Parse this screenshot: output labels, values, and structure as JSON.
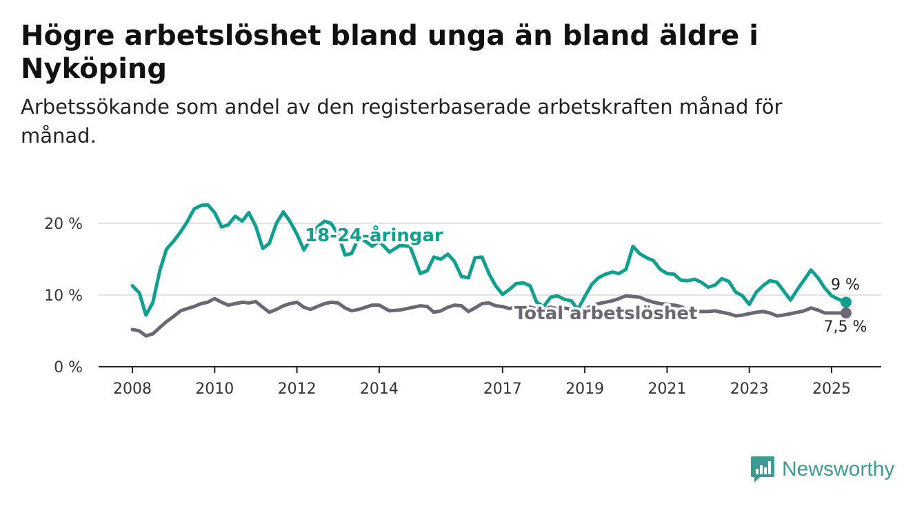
{
  "title": "Högre arbetslöshet bland unga än bland äldre i Nyköping",
  "subtitle": "Arbetssökande som andel av den registerbaserade arbetskraften månad för månad.",
  "brand": "Newsworthy",
  "colors": {
    "youth": "#11a08f",
    "total": "#6b6873",
    "grid": "#d9d9d9",
    "axis": "#222222"
  },
  "chart_data": {
    "type": "line",
    "xlim": [
      2008,
      2026.2
    ],
    "ylim": [
      0,
      25
    ],
    "x_ticks": [
      2008,
      2010,
      2012,
      2014,
      2017,
      2019,
      2021,
      2023,
      2025
    ],
    "x_tick_labels": [
      "2008",
      "2010",
      "2012",
      "2014",
      "2017",
      "2019",
      "2021",
      "2023",
      "2025"
    ],
    "y_ticks": [
      0,
      10,
      20
    ],
    "y_tick_labels": [
      "0 %",
      "10 %",
      "20 %"
    ],
    "grid": "horizontal",
    "series": [
      {
        "name": "18-24-åringar",
        "color": "#11a08f",
        "end_label": "9 %",
        "x": [
          2008.0,
          2008.17,
          2008.33,
          2008.5,
          2008.67,
          2008.83,
          2009.0,
          2009.17,
          2009.33,
          2009.5,
          2009.67,
          2009.83,
          2010.0,
          2010.17,
          2010.33,
          2010.5,
          2010.67,
          2010.83,
          2011.0,
          2011.17,
          2011.33,
          2011.5,
          2011.67,
          2011.83,
          2012.0,
          2012.17,
          2012.33,
          2012.5,
          2012.67,
          2012.83,
          2013.0,
          2013.17,
          2013.33,
          2013.5,
          2013.67,
          2013.83,
          2014.0,
          2014.25,
          2014.5,
          2014.75,
          2015.0,
          2015.17,
          2015.33,
          2015.5,
          2015.67,
          2015.83,
          2016.0,
          2016.17,
          2016.33,
          2016.5,
          2016.67,
          2016.83,
          2017.0,
          2017.17,
          2017.33,
          2017.5,
          2017.67,
          2017.83,
          2018.0,
          2018.17,
          2018.33,
          2018.5,
          2018.67,
          2018.83,
          2019.0,
          2019.17,
          2019.33,
          2019.5,
          2019.67,
          2019.83,
          2020.0,
          2020.17,
          2020.33,
          2020.5,
          2020.67,
          2020.83,
          2021.0,
          2021.17,
          2021.33,
          2021.5,
          2021.67,
          2021.83,
          2022.0,
          2022.17,
          2022.33,
          2022.5,
          2022.67,
          2022.83,
          2023.0,
          2023.17,
          2023.33,
          2023.5,
          2023.67,
          2023.83,
          2024.0,
          2024.17,
          2024.33,
          2024.5,
          2024.67,
          2024.83,
          2025.0,
          2025.17,
          2025.35
        ],
        "values": [
          11.3,
          10.3,
          7.2,
          9.0,
          13.5,
          16.4,
          17.5,
          18.8,
          20.2,
          22.0,
          22.5,
          22.6,
          21.5,
          19.5,
          19.8,
          21.0,
          20.3,
          21.5,
          19.6,
          16.5,
          17.2,
          20.0,
          21.6,
          20.3,
          18.5,
          16.3,
          17.8,
          19.5,
          20.3,
          20.0,
          18.5,
          15.6,
          15.8,
          18.0,
          17.5,
          16.8,
          17.5,
          16.0,
          16.9,
          16.8,
          13.0,
          13.4,
          15.3,
          15.0,
          15.7,
          14.7,
          12.6,
          12.4,
          15.2,
          15.3,
          13.0,
          11.3,
          10.1,
          10.8,
          11.6,
          11.7,
          11.3,
          9.0,
          8.4,
          9.7,
          9.9,
          9.4,
          9.2,
          8.0,
          9.8,
          11.5,
          12.4,
          12.9,
          13.2,
          13.0,
          13.6,
          16.8,
          15.8,
          15.2,
          14.8,
          13.6,
          13.0,
          12.9,
          12.1,
          12.0,
          12.2,
          11.8,
          11.1,
          11.4,
          12.3,
          11.9,
          10.4,
          9.9,
          8.7,
          10.4,
          11.3,
          12.0,
          11.8,
          10.6,
          9.3,
          10.8,
          12.1,
          13.5,
          12.4,
          11.0,
          9.9,
          9.4,
          9.0
        ]
      },
      {
        "name": "Total arbetslöshet",
        "color": "#6b6873",
        "end_label": "7,5 %",
        "x": [
          2008.0,
          2008.17,
          2008.33,
          2008.5,
          2008.67,
          2008.83,
          2009.0,
          2009.17,
          2009.33,
          2009.5,
          2009.67,
          2009.83,
          2010.0,
          2010.17,
          2010.33,
          2010.5,
          2010.67,
          2010.83,
          2011.0,
          2011.17,
          2011.33,
          2011.5,
          2011.67,
          2011.83,
          2012.0,
          2012.17,
          2012.33,
          2012.5,
          2012.67,
          2012.83,
          2013.0,
          2013.17,
          2013.33,
          2013.5,
          2013.67,
          2013.83,
          2014.0,
          2014.25,
          2014.5,
          2014.75,
          2015.0,
          2015.17,
          2015.33,
          2015.5,
          2015.67,
          2015.83,
          2016.0,
          2016.17,
          2016.33,
          2016.5,
          2016.67,
          2016.83,
          2017.0,
          2017.17,
          2017.33,
          2017.5,
          2017.67,
          2017.83,
          2018.0,
          2018.17,
          2018.33,
          2018.5,
          2018.67,
          2018.83,
          2019.0,
          2019.17,
          2019.33,
          2019.5,
          2019.67,
          2019.83,
          2020.0,
          2020.17,
          2020.33,
          2020.5,
          2020.67,
          2020.83,
          2021.0,
          2021.17,
          2021.33,
          2021.5,
          2021.67,
          2021.83,
          2022.0,
          2022.17,
          2022.33,
          2022.5,
          2022.67,
          2022.83,
          2023.0,
          2023.17,
          2023.33,
          2023.5,
          2023.67,
          2023.83,
          2024.0,
          2024.17,
          2024.33,
          2024.5,
          2024.67,
          2024.83,
          2025.0,
          2025.17,
          2025.35
        ],
        "values": [
          5.2,
          5.0,
          4.3,
          4.6,
          5.5,
          6.3,
          7.0,
          7.8,
          8.1,
          8.4,
          8.8,
          9.0,
          9.5,
          9.0,
          8.6,
          8.8,
          9.0,
          8.9,
          9.1,
          8.3,
          7.6,
          8.0,
          8.5,
          8.8,
          9.0,
          8.3,
          8.0,
          8.4,
          8.8,
          9.0,
          8.9,
          8.2,
          7.8,
          8.0,
          8.3,
          8.6,
          8.6,
          7.8,
          7.9,
          8.2,
          8.5,
          8.4,
          7.6,
          7.8,
          8.3,
          8.6,
          8.5,
          7.7,
          8.2,
          8.8,
          8.9,
          8.5,
          8.4,
          8.1,
          8.4,
          8.5,
          8.3,
          8.1,
          8.0,
          8.3,
          8.1,
          8.2,
          8.0,
          7.8,
          8.0,
          8.5,
          8.8,
          9.0,
          9.2,
          9.5,
          9.9,
          9.8,
          9.7,
          9.3,
          9.0,
          8.8,
          8.7,
          8.6,
          8.4,
          7.9,
          7.7,
          7.7,
          7.7,
          7.8,
          7.6,
          7.4,
          7.1,
          7.2,
          7.4,
          7.6,
          7.7,
          7.5,
          7.1,
          7.2,
          7.4,
          7.6,
          7.8,
          8.2,
          7.9,
          7.5,
          7.5,
          7.5,
          7.5
        ]
      }
    ]
  }
}
